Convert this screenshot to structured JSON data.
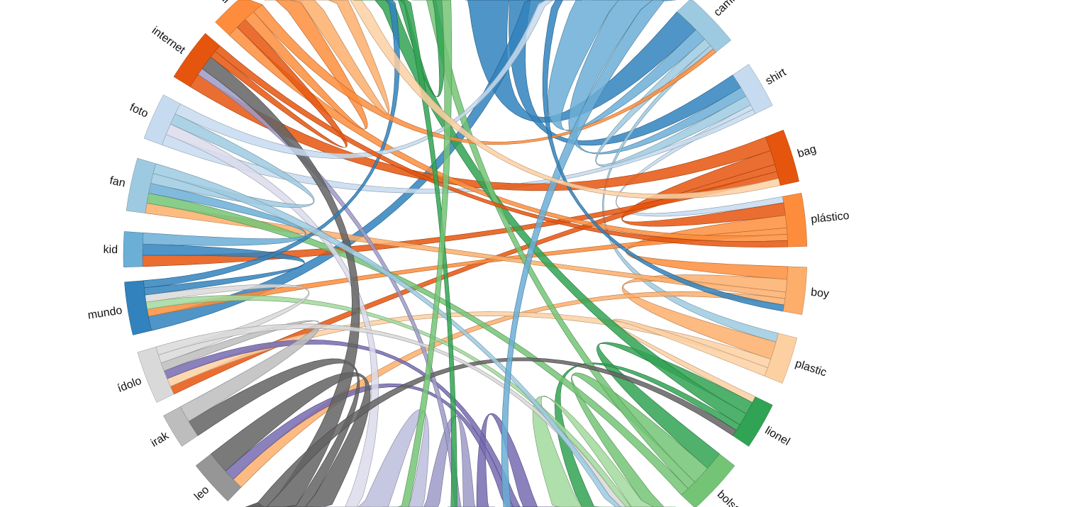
{
  "chart_data": {
    "type": "chord",
    "groups": [
      {
        "name": "camiseta",
        "color": "#9ecae1"
      },
      {
        "name": "shirt",
        "color": "#c6dbef"
      },
      {
        "name": "bag",
        "color": "#e6550d"
      },
      {
        "name": "plástico",
        "color": "#fd8d3c"
      },
      {
        "name": "boy",
        "color": "#fdae6b"
      },
      {
        "name": "plastic",
        "color": "#fdd0a2"
      },
      {
        "name": "lionel",
        "color": "#31a354"
      },
      {
        "name": "bolsa",
        "color": "#74c476"
      },
      {
        "name": "",
        "color": "#a1d99b"
      },
      {
        "name": "",
        "color": "#c7e9c0"
      },
      {
        "name": "",
        "color": "#756bb1"
      },
      {
        "name": "",
        "color": "#9e9ac8"
      },
      {
        "name": "",
        "color": "#bcbddc"
      },
      {
        "name": "",
        "color": "#dadaeb"
      },
      {
        "name": "",
        "color": "#636363"
      },
      {
        "name": "leo",
        "color": "#969696"
      },
      {
        "name": "irak",
        "color": "#bdbdbd"
      },
      {
        "name": "ídolo",
        "color": "#d9d9d9"
      },
      {
        "name": "mundo",
        "color": "#3182bd"
      },
      {
        "name": "kid",
        "color": "#6baed6"
      },
      {
        "name": "fan",
        "color": "#9ecae1"
      },
      {
        "name": "foto",
        "color": "#c6dbef"
      },
      {
        "name": "internet",
        "color": "#e6550d"
      },
      {
        "name": "di",
        "color": "#fd8d3c"
      },
      {
        "name": "",
        "color": "#fdae6b"
      },
      {
        "name": "",
        "color": "#fdd0a2"
      },
      {
        "name": "",
        "color": "#31a354"
      },
      {
        "name": "",
        "color": "#74c476"
      },
      {
        "name": "",
        "color": "#3182bd"
      },
      {
        "name": "",
        "color": "#6baed6"
      }
    ],
    "chords": [
      [
        28,
        0,
        6
      ],
      [
        28,
        1,
        3
      ],
      [
        28,
        18,
        2
      ],
      [
        29,
        0,
        3
      ],
      [
        29,
        1,
        2
      ],
      [
        0,
        1,
        2
      ],
      [
        0,
        5,
        1
      ],
      [
        1,
        3,
        1
      ],
      [
        1,
        21,
        1
      ],
      [
        2,
        22,
        2
      ],
      [
        2,
        3,
        2
      ],
      [
        2,
        17,
        1
      ],
      [
        2,
        19,
        1
      ],
      [
        3,
        4,
        2
      ],
      [
        3,
        18,
        1
      ],
      [
        3,
        23,
        1
      ],
      [
        4,
        5,
        2
      ],
      [
        4,
        20,
        1
      ],
      [
        4,
        15,
        1
      ],
      [
        5,
        17,
        1
      ],
      [
        5,
        6,
        1
      ],
      [
        6,
        7,
        2
      ],
      [
        6,
        26,
        2
      ],
      [
        6,
        9,
        1
      ],
      [
        7,
        8,
        2
      ],
      [
        7,
        27,
        1
      ],
      [
        7,
        20,
        1
      ],
      [
        8,
        9,
        2
      ],
      [
        8,
        18,
        1
      ],
      [
        10,
        11,
        2
      ],
      [
        10,
        17,
        1
      ],
      [
        10,
        15,
        1
      ],
      [
        11,
        12,
        2
      ],
      [
        11,
        22,
        1
      ],
      [
        12,
        13,
        2
      ],
      [
        13,
        21,
        1
      ],
      [
        14,
        15,
        2
      ],
      [
        14,
        16,
        1
      ],
      [
        14,
        22,
        2
      ],
      [
        14,
        6,
        1
      ],
      [
        16,
        17,
        1
      ],
      [
        17,
        18,
        1
      ],
      [
        17,
        8,
        1
      ],
      [
        18,
        19,
        1
      ],
      [
        18,
        26,
        1
      ],
      [
        19,
        20,
        1
      ],
      [
        20,
        21,
        1
      ],
      [
        20,
        8,
        1
      ],
      [
        21,
        28,
        1
      ],
      [
        22,
        23,
        1
      ],
      [
        22,
        3,
        1
      ],
      [
        23,
        24,
        1
      ],
      [
        23,
        0,
        1
      ],
      [
        24,
        25,
        1
      ],
      [
        26,
        27,
        1
      ],
      [
        26,
        11,
        1
      ],
      [
        27,
        12,
        1
      ],
      [
        29,
        10,
        1
      ],
      [
        28,
        4,
        1
      ],
      [
        25,
        2,
        1
      ]
    ]
  }
}
